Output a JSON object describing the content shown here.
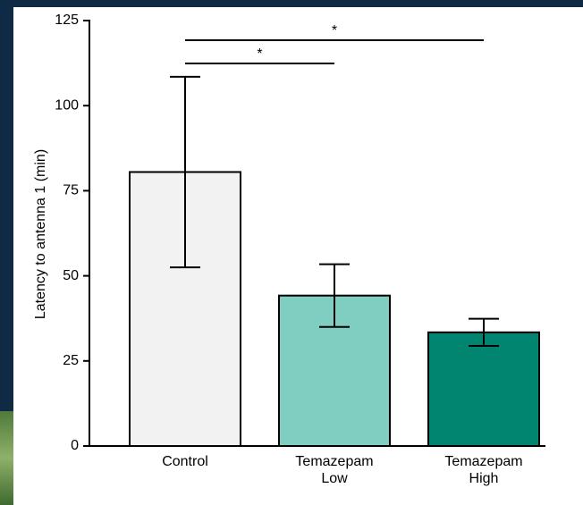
{
  "chart_data": {
    "type": "bar",
    "y_label": "Latency to antenna 1 (min)",
    "categories": [
      "Control",
      "Temazepam Low",
      "Temazepam High"
    ],
    "values": [
      80.5,
      44.2,
      33.4
    ],
    "errors": [
      28,
      9.2,
      4
    ],
    "colors": [
      "#f2f2f2",
      "#80cdc1",
      "#018571"
    ],
    "ylim": [
      0,
      125
    ],
    "yticks": [
      0,
      25,
      50,
      75,
      100,
      125
    ],
    "significance": [
      {
        "from": 0,
        "to": 2,
        "label": "*"
      },
      {
        "from": 0,
        "to": 1,
        "label": "*"
      }
    ]
  }
}
